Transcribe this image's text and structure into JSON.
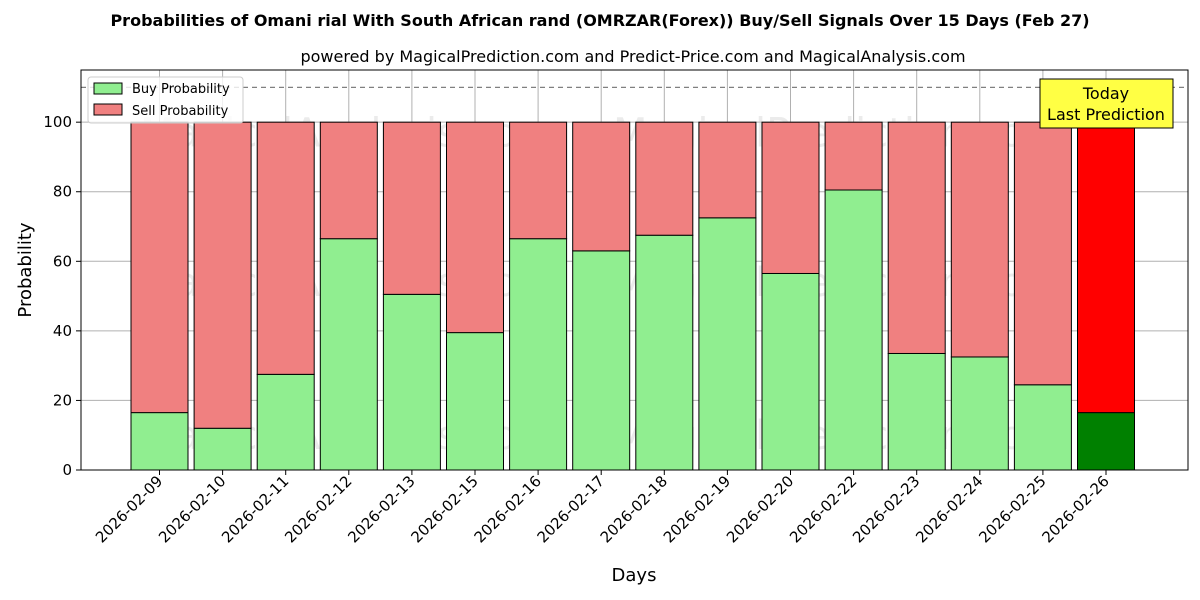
{
  "chart_data": {
    "type": "bar",
    "stacked": true,
    "title": "Probabilities of Omani rial With South African rand (OMRZAR(Forex)) Buy/Sell Signals Over 15 Days (Feb 27)",
    "subtitle": "powered by MagicalPrediction.com and Predict-Price.com and MagicalAnalysis.com",
    "xlabel": "Days",
    "ylabel": "Probability",
    "ylim": [
      0,
      115
    ],
    "yticks": [
      0,
      20,
      40,
      60,
      80,
      100
    ],
    "grid": true,
    "legend_position": "top-left",
    "reference_line": 110,
    "categories": [
      "2026-02-09",
      "2026-02-10",
      "2026-02-11",
      "2026-02-12",
      "2026-02-13",
      "2026-02-15",
      "2026-02-16",
      "2026-02-17",
      "2026-02-18",
      "2026-02-19",
      "2026-02-20",
      "2026-02-22",
      "2026-02-23",
      "2026-02-24",
      "2026-02-25",
      "2026-02-26"
    ],
    "series": [
      {
        "name": "Buy Probability",
        "color": "#90ee90",
        "values": [
          16.5,
          12,
          27.5,
          66.5,
          50.5,
          39.5,
          66.5,
          63,
          67.5,
          72.5,
          56.5,
          80.5,
          33.5,
          32.5,
          24.5,
          16.5
        ]
      },
      {
        "name": "Sell Probability",
        "color": "#f08080",
        "values": [
          83.5,
          88,
          72.5,
          33.5,
          49.5,
          60.5,
          33.5,
          37,
          32.5,
          27.5,
          43.5,
          19.5,
          66.5,
          67.5,
          75.5,
          83.5
        ]
      }
    ],
    "highlight": {
      "index": 15,
      "buy_color": "#008000",
      "sell_color": "#ff0000"
    },
    "annotation": {
      "lines": [
        "Today",
        "Last Prediction"
      ],
      "background": "#ffff44"
    },
    "watermarks": [
      "MagicalAnalysis.com",
      "MagicalPrediction.com"
    ]
  }
}
